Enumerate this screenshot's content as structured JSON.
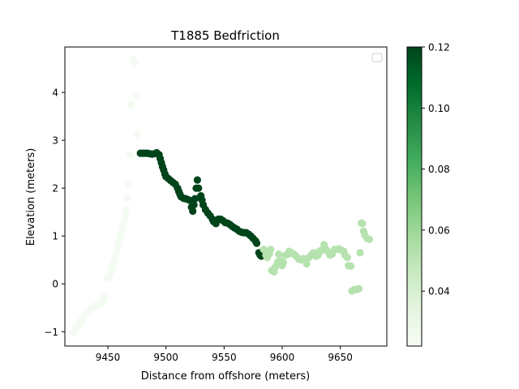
{
  "chart_data": {
    "type": "scatter",
    "title": "T1885 Bedfriction",
    "xlabel": "Distance from offshore (meters)",
    "ylabel": "Elevation (meters)",
    "xlim": [
      9413,
      9690
    ],
    "ylim": [
      -1.3,
      4.95
    ],
    "xticks": [
      9450,
      9500,
      9550,
      9600,
      9650
    ],
    "yticks": [
      -1,
      0,
      1,
      2,
      3,
      4
    ],
    "grid": false,
    "legend": {
      "location": "upper right",
      "entries": []
    },
    "colorbar": {
      "colormap": "Greens",
      "range": [
        0.022,
        0.12
      ],
      "ticks": [
        0.04,
        0.06,
        0.08,
        0.1,
        0.12
      ],
      "tick_labels": [
        "0.04",
        "0.06",
        "0.08",
        "0.10",
        "0.12"
      ]
    },
    "series": [
      {
        "color_value": 0.024,
        "points": [
          [
            9420,
            -1.02
          ],
          [
            9422,
            -0.95
          ],
          [
            9424,
            -0.88
          ],
          [
            9426,
            -0.81
          ],
          [
            9428,
            -0.74
          ],
          [
            9430,
            -0.67
          ],
          [
            9432,
            -0.6
          ],
          [
            9434,
            -0.55
          ],
          [
            9436,
            -0.5
          ],
          [
            9438,
            -0.48
          ],
          [
            9440,
            -0.46
          ],
          [
            9442,
            -0.44
          ],
          [
            9444,
            -0.4
          ],
          [
            9446,
            -0.34
          ],
          [
            9447,
            -0.28
          ],
          [
            9449,
            0.12
          ],
          [
            9451,
            0.14
          ],
          [
            9452,
            0.2
          ],
          [
            9453,
            0.28
          ],
          [
            9454,
            0.36
          ],
          [
            9455,
            0.44
          ],
          [
            9456,
            0.52
          ],
          [
            9457,
            0.62
          ],
          [
            9458,
            0.72
          ],
          [
            9459,
            0.82
          ],
          [
            9460,
            0.92
          ],
          [
            9461,
            1.02
          ],
          [
            9462,
            1.12
          ],
          [
            9463,
            1.22
          ],
          [
            9464,
            1.32
          ],
          [
            9465,
            1.42
          ],
          [
            9466,
            1.55
          ],
          [
            9467,
            1.8
          ],
          [
            9468,
            2.08
          ],
          [
            9469,
            2.7
          ],
          [
            9470,
            3.75
          ],
          [
            9472,
            4.68
          ],
          [
            9473,
            4.63
          ],
          [
            9474,
            3.93
          ],
          [
            9475,
            3.12
          ]
        ]
      },
      {
        "color_value": 0.12,
        "points": [
          [
            9478,
            2.73
          ],
          [
            9480,
            2.73
          ],
          [
            9482,
            2.73
          ],
          [
            9484,
            2.73
          ],
          [
            9486,
            2.72
          ],
          [
            9488,
            2.71
          ],
          [
            9490,
            2.72
          ],
          [
            9492,
            2.74
          ],
          [
            9494,
            2.7
          ],
          [
            9495,
            2.62
          ],
          [
            9496,
            2.53
          ],
          [
            9497,
            2.45
          ],
          [
            9498,
            2.38
          ],
          [
            9499,
            2.3
          ],
          [
            9500,
            2.24
          ],
          [
            9502,
            2.2
          ],
          [
            9504,
            2.16
          ],
          [
            9506,
            2.12
          ],
          [
            9508,
            2.08
          ],
          [
            9510,
            2.0
          ],
          [
            9511,
            1.93
          ],
          [
            9512,
            1.87
          ],
          [
            9513,
            1.82
          ],
          [
            9515,
            1.79
          ],
          [
            9517,
            1.78
          ],
          [
            9519,
            1.76
          ],
          [
            9521,
            1.74
          ],
          [
            9522,
            1.6
          ],
          [
            9523,
            1.52
          ],
          [
            9524,
            1.65
          ],
          [
            9525,
            1.78
          ],
          [
            9526,
            2.0
          ],
          [
            9527,
            2.17
          ],
          [
            9528,
            2.0
          ],
          [
            9530,
            1.84
          ],
          [
            9531,
            1.75
          ],
          [
            9532,
            1.65
          ],
          [
            9534,
            1.55
          ],
          [
            9536,
            1.48
          ],
          [
            9538,
            1.42
          ],
          [
            9540,
            1.35
          ],
          [
            9541,
            1.3
          ],
          [
            9543,
            1.26
          ],
          [
            9545,
            1.35
          ],
          [
            9547,
            1.35
          ],
          [
            9549,
            1.32
          ],
          [
            9551,
            1.28
          ],
          [
            9553,
            1.27
          ],
          [
            9555,
            1.24
          ],
          [
            9557,
            1.2
          ],
          [
            9559,
            1.17
          ],
          [
            9561,
            1.14
          ],
          [
            9563,
            1.1
          ],
          [
            9565,
            1.08
          ],
          [
            9567,
            1.07
          ],
          [
            9569,
            1.07
          ],
          [
            9571,
            1.04
          ],
          [
            9573,
            1.0
          ],
          [
            9575,
            0.95
          ],
          [
            9577,
            0.9
          ],
          [
            9578,
            0.85
          ],
          [
            9580,
            0.65
          ],
          [
            9581,
            0.6
          ],
          [
            9582,
            0.58
          ]
        ]
      },
      {
        "color_value": 0.052,
        "points": [
          [
            9584,
            0.72
          ],
          [
            9586,
            0.6
          ],
          [
            9587,
            0.55
          ],
          [
            9589,
            0.63
          ],
          [
            9590,
            0.72
          ],
          [
            9591,
            0.28
          ],
          [
            9593,
            0.25
          ],
          [
            9594,
            0.35
          ],
          [
            9596,
            0.45
          ],
          [
            9597,
            0.62
          ],
          [
            9598,
            0.5
          ],
          [
            9600,
            0.38
          ],
          [
            9601,
            0.45
          ],
          [
            9603,
            0.6
          ],
          [
            9605,
            0.62
          ],
          [
            9606,
            0.68
          ],
          [
            9608,
            0.65
          ],
          [
            9610,
            0.62
          ],
          [
            9612,
            0.58
          ],
          [
            9614,
            0.52
          ],
          [
            9616,
            0.5
          ],
          [
            9618,
            0.53
          ],
          [
            9620,
            0.5
          ],
          [
            9621,
            0.42
          ],
          [
            9623,
            0.55
          ],
          [
            9625,
            0.6
          ],
          [
            9627,
            0.65
          ],
          [
            9629,
            0.58
          ],
          [
            9631,
            0.6
          ],
          [
            9632,
            0.68
          ],
          [
            9634,
            0.7
          ],
          [
            9636,
            0.82
          ],
          [
            9637,
            0.75
          ],
          [
            9639,
            0.68
          ],
          [
            9641,
            0.6
          ],
          [
            9643,
            0.62
          ],
          [
            9645,
            0.72
          ],
          [
            9647,
            0.72
          ],
          [
            9649,
            0.73
          ],
          [
            9651,
            0.7
          ],
          [
            9653,
            0.68
          ],
          [
            9654,
            0.6
          ],
          [
            9656,
            0.55
          ],
          [
            9657,
            0.38
          ],
          [
            9659,
            0.37
          ],
          [
            9660,
            -0.15
          ],
          [
            9662,
            -0.12
          ],
          [
            9664,
            -0.12
          ],
          [
            9666,
            -0.1
          ],
          [
            9667,
            0.65
          ],
          [
            9668,
            1.27
          ],
          [
            9669,
            1.26
          ],
          [
            9670,
            1.1
          ],
          [
            9671,
            1.02
          ],
          [
            9673,
            0.95
          ],
          [
            9675,
            0.93
          ]
        ]
      }
    ]
  }
}
